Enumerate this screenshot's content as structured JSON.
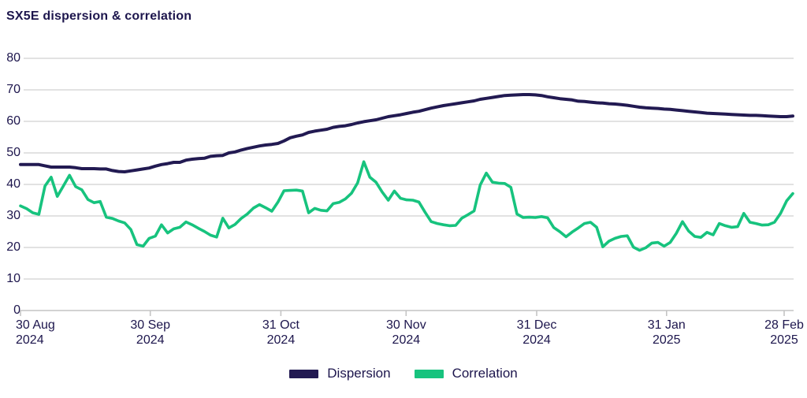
{
  "title": "SX5E dispersion & correlation",
  "colors": {
    "dispersion": "#221a52",
    "correlation": "#17c37e",
    "grid": "#d9d9d9",
    "axis": "#c4c4c4",
    "text": "#1d164d",
    "background": "#ffffff"
  },
  "legend": {
    "items": [
      {
        "label": "Dispersion",
        "color_key": "dispersion"
      },
      {
        "label": "Correlation",
        "color_key": "correlation"
      }
    ]
  },
  "chart_data": {
    "type": "line",
    "title": "SX5E dispersion & correlation",
    "ylim": [
      0,
      80
    ],
    "y_ticks": [
      0,
      10,
      20,
      30,
      40,
      50,
      60,
      70,
      80
    ],
    "grid": "horizontal",
    "legend_position": "bottom-center",
    "x_ticks": [
      {
        "label": "30 Aug",
        "year": "2024",
        "pos": 0.0
      },
      {
        "label": "30 Sep",
        "year": "2024",
        "pos": 0.17
      },
      {
        "label": "31 Oct",
        "year": "2024",
        "pos": 0.341
      },
      {
        "label": "30 Nov",
        "year": "2024",
        "pos": 0.505
      },
      {
        "label": "31 Dec",
        "year": "2024",
        "pos": 0.676
      },
      {
        "label": "31 Jan",
        "year": "2025",
        "pos": 0.846
      },
      {
        "label": "28 Feb",
        "year": "2025",
        "pos": 1.0
      }
    ],
    "x_note": "daily values, evenly spaced from 30 Aug 2024 to 28 Feb 2025",
    "series": [
      {
        "name": "Dispersion",
        "color_key": "dispersion",
        "values": [
          46.3,
          46.3,
          46.3,
          46.3,
          45.9,
          45.5,
          45.5,
          45.5,
          45.5,
          45.3,
          45.0,
          45.0,
          45.0,
          44.9,
          44.9,
          44.4,
          44.1,
          44.0,
          44.3,
          44.6,
          44.9,
          45.2,
          45.8,
          46.3,
          46.6,
          47.0,
          47.0,
          47.7,
          48.0,
          48.2,
          48.3,
          48.9,
          49.1,
          49.2,
          50.0,
          50.3,
          50.9,
          51.4,
          51.8,
          52.2,
          52.5,
          52.7,
          53.0,
          53.8,
          54.8,
          55.3,
          55.7,
          56.5,
          56.9,
          57.2,
          57.5,
          58.1,
          58.4,
          58.6,
          59.0,
          59.5,
          59.9,
          60.2,
          60.5,
          61.0,
          61.5,
          61.8,
          62.1,
          62.5,
          62.9,
          63.2,
          63.7,
          64.2,
          64.6,
          65.0,
          65.3,
          65.6,
          65.9,
          66.2,
          66.5,
          67.0,
          67.3,
          67.6,
          67.9,
          68.2,
          68.3,
          68.4,
          68.5,
          68.5,
          68.4,
          68.2,
          67.8,
          67.5,
          67.2,
          67.0,
          66.8,
          66.4,
          66.3,
          66.1,
          65.9,
          65.8,
          65.6,
          65.5,
          65.3,
          65.1,
          64.8,
          64.5,
          64.3,
          64.2,
          64.1,
          63.9,
          63.8,
          63.6,
          63.4,
          63.2,
          63.0,
          62.8,
          62.6,
          62.5,
          62.4,
          62.3,
          62.2,
          62.1,
          62.0,
          61.9,
          61.9,
          61.8,
          61.7,
          61.6,
          61.5,
          61.5,
          61.7
        ]
      },
      {
        "name": "Correlation",
        "color_key": "correlation",
        "values": [
          33.2,
          32.3,
          31.0,
          30.5,
          39.5,
          42.3,
          36.2,
          39.5,
          42.9,
          39.3,
          38.3,
          35.2,
          34.2,
          34.6,
          29.6,
          29.2,
          28.4,
          27.8,
          25.7,
          20.9,
          20.4,
          22.9,
          23.6,
          27.2,
          24.6,
          25.9,
          26.4,
          28.1,
          27.2,
          26.1,
          25.1,
          23.9,
          23.3,
          29.3,
          26.2,
          27.3,
          29.2,
          30.6,
          32.5,
          33.6,
          32.6,
          31.5,
          34.4,
          38.0,
          38.1,
          38.2,
          37.9,
          31.0,
          32.4,
          31.8,
          31.6,
          33.9,
          34.3,
          35.4,
          37.2,
          40.5,
          47.2,
          42.3,
          40.7,
          37.6,
          35.0,
          37.9,
          35.6,
          35.1,
          35.0,
          34.4,
          31.2,
          28.2,
          27.6,
          27.2,
          26.9,
          27.0,
          29.3,
          30.4,
          31.6,
          39.8,
          43.6,
          40.7,
          40.4,
          40.3,
          39.1,
          30.6,
          29.5,
          29.6,
          29.5,
          29.8,
          29.4,
          26.3,
          25.0,
          23.4,
          24.9,
          26.2,
          27.6,
          28.0,
          26.4,
          20.2,
          22.0,
          22.9,
          23.5,
          23.7,
          20.1,
          19.1,
          19.9,
          21.4,
          21.6,
          20.4,
          21.6,
          24.5,
          28.2,
          25.2,
          23.5,
          23.2,
          24.8,
          24.0,
          27.6,
          26.9,
          26.4,
          26.6,
          30.8,
          28.0,
          27.6,
          27.1,
          27.2,
          28.0,
          30.8,
          34.8,
          37.1
        ]
      }
    ]
  }
}
